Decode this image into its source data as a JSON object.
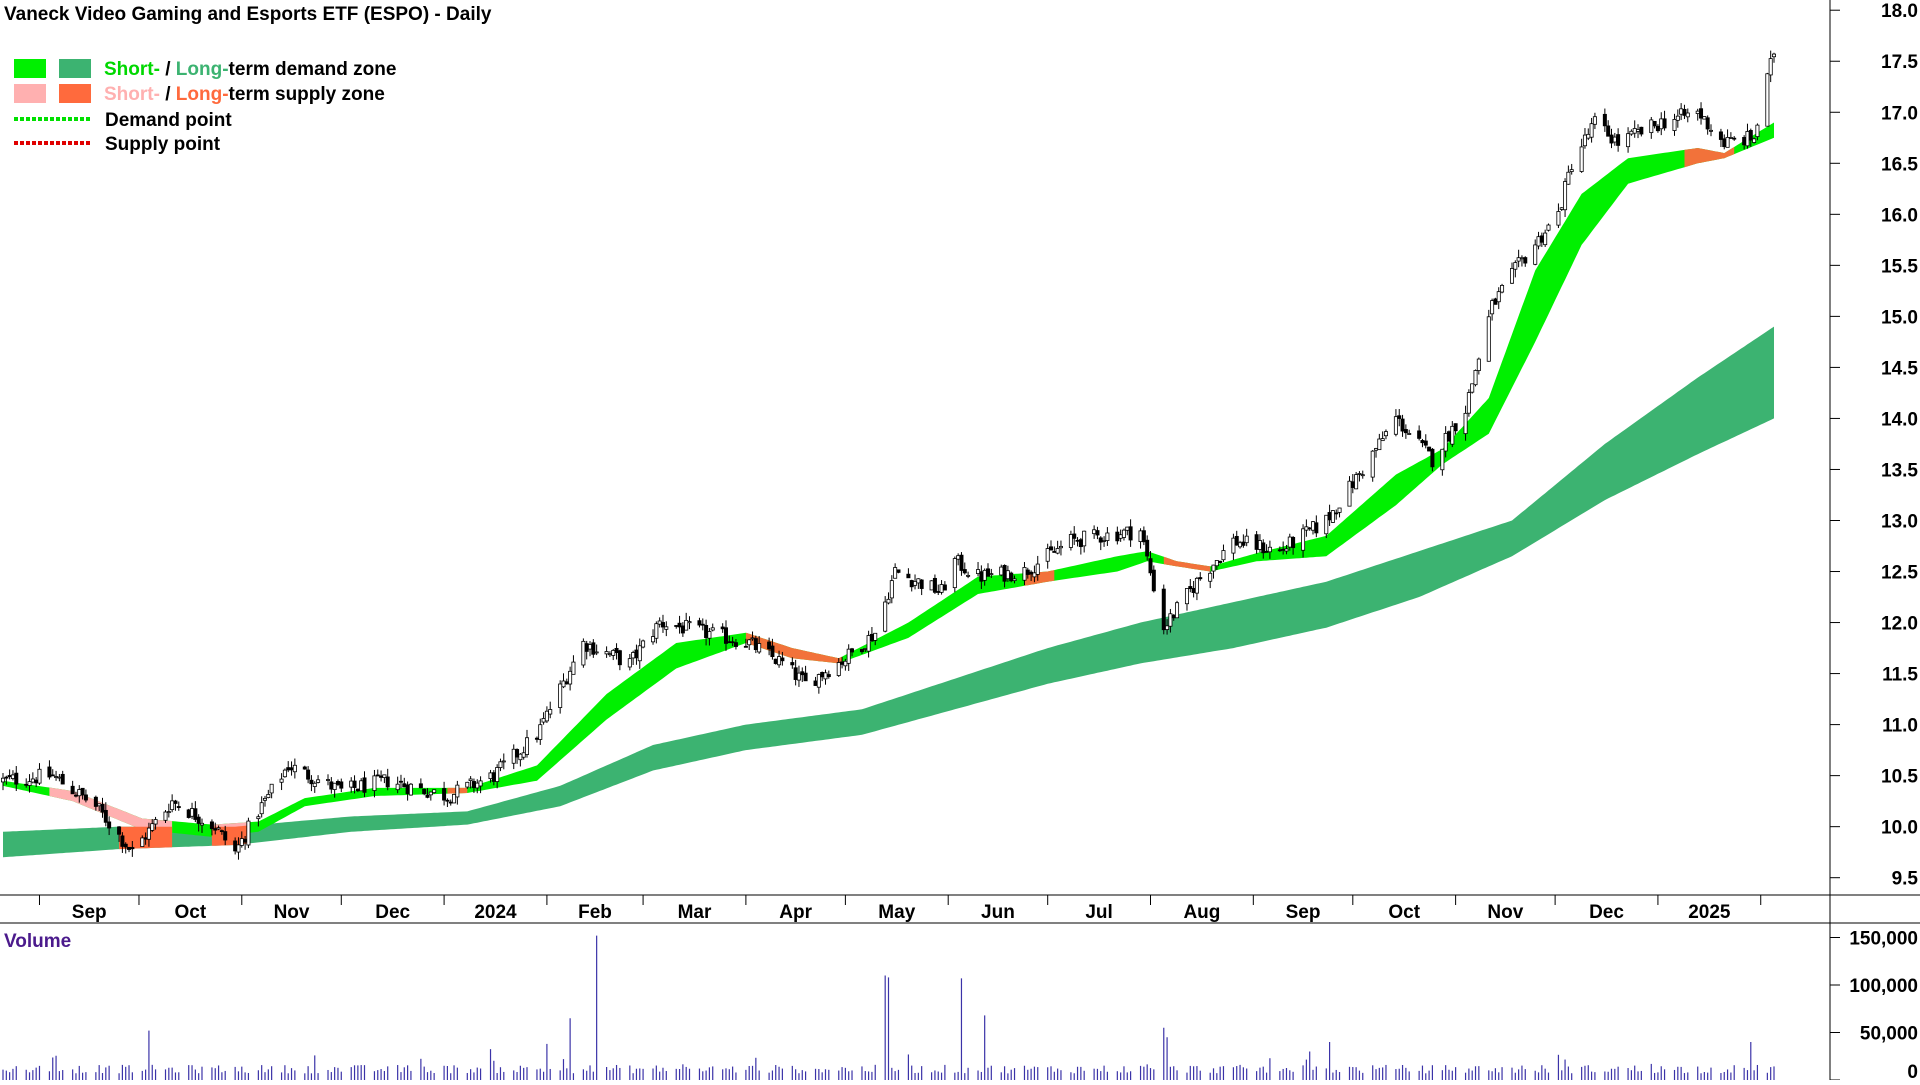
{
  "chart_data": {
    "type": "candlestick",
    "title": "Vaneck Video Gaming and Esports ETF (ESPO) - Daily",
    "x_tick_labels": [
      "Sep",
      "Oct",
      "Nov",
      "Dec",
      "2024",
      "Feb",
      "Mar",
      "Apr",
      "May",
      "Jun",
      "Jul",
      "Aug",
      "Sep",
      "Oct",
      "Nov",
      "Dec",
      "2025"
    ],
    "price_axis": {
      "ylim": [
        9.35,
        18.1
      ],
      "ticks": [
        "9.5",
        "10.0",
        "10.5",
        "11.0",
        "11.5",
        "12.0",
        "12.5",
        "13.0",
        "13.5",
        "14.0",
        "14.5",
        "15.0",
        "15.5",
        "16.0",
        "16.5",
        "17.0",
        "17.5",
        "18.0"
      ]
    },
    "volume_axis": {
      "label": "Volume",
      "ylim": [
        0,
        160000
      ],
      "ticks": [
        "0",
        "50,000",
        "100,000",
        "150,000"
      ]
    },
    "legend": {
      "placement": "top-left",
      "rows": [
        {
          "short_text": "Short-",
          "sep": " / ",
          "long_text": "Long-",
          "rest": "term demand zone"
        },
        {
          "short_text": "Short-",
          "sep": " / ",
          "long_text": "Long-",
          "rest": "term supply zone"
        },
        {
          "label": "Demand point"
        },
        {
          "label": "Supply point"
        }
      ]
    },
    "colors": {
      "short_demand": "#00f000",
      "long_demand": "#3cb371",
      "short_supply": "#ffb0b0",
      "long_supply": "#ff6a3d",
      "demand_point": "#00e000",
      "supply_point": "#e00000",
      "candle": "#000000",
      "volume_bar": "#3b33a8",
      "legend_text": "#000000",
      "volume_label": "#4b1a8c"
    },
    "price_path": {
      "dates": [
        "2023-08-21",
        "2023-09-05",
        "2023-09-18",
        "2023-09-29",
        "2023-10-11",
        "2023-10-24",
        "2023-10-30",
        "2023-11-06",
        "2023-11-15",
        "2023-12-01",
        "2023-12-15",
        "2024-01-02",
        "2024-01-16",
        "2024-01-29",
        "2024-02-12",
        "2024-02-26",
        "2024-03-06",
        "2024-03-20",
        "2024-04-02",
        "2024-04-12",
        "2024-04-19",
        "2024-05-01",
        "2024-05-10",
        "2024-05-16",
        "2024-05-30",
        "2024-06-03",
        "2024-06-10",
        "2024-06-24",
        "2024-07-08",
        "2024-07-17",
        "2024-07-29",
        "2024-08-05",
        "2024-08-15",
        "2024-08-26",
        "2024-09-09",
        "2024-09-23",
        "2024-10-04",
        "2024-10-14",
        "2024-10-25",
        "2024-11-04",
        "2024-11-12",
        "2024-11-20",
        "2024-12-02",
        "2024-12-06",
        "2024-12-13",
        "2024-12-20",
        "2025-01-02",
        "2025-01-13",
        "2025-01-21",
        "2025-01-30",
        "2025-02-05"
      ],
      "close": [
        10.45,
        10.5,
        10.2,
        9.75,
        10.25,
        10.0,
        9.75,
        10.15,
        10.6,
        10.35,
        10.45,
        10.3,
        10.5,
        10.9,
        11.8,
        11.6,
        12.0,
        11.9,
        11.8,
        11.6,
        11.4,
        11.65,
        11.9,
        12.5,
        12.3,
        12.6,
        12.45,
        12.5,
        12.8,
        12.85,
        12.9,
        11.95,
        12.4,
        12.8,
        12.7,
        13.0,
        13.5,
        14.0,
        13.6,
        14.1,
        15.1,
        15.5,
        16.0,
        16.5,
        16.9,
        16.7,
        16.9,
        17.0,
        16.7,
        16.75,
        17.6
      ]
    },
    "short_zone": {
      "dates": [
        "2023-08-21",
        "2023-09-11",
        "2023-10-02",
        "2023-10-23",
        "2023-11-06",
        "2023-11-20",
        "2023-12-11",
        "2024-01-08",
        "2024-01-29",
        "2024-02-19",
        "2024-03-11",
        "2024-04-01",
        "2024-04-15",
        "2024-04-29",
        "2024-05-20",
        "2024-06-10",
        "2024-07-01",
        "2024-07-22",
        "2024-07-31",
        "2024-08-09",
        "2024-08-19",
        "2024-09-02",
        "2024-09-23",
        "2024-10-14",
        "2024-10-28",
        "2024-11-11",
        "2024-11-25",
        "2024-12-09",
        "2024-12-23",
        "2025-01-13",
        "2025-01-21",
        "2025-02-05"
      ],
      "upper": [
        10.45,
        10.35,
        10.08,
        10.02,
        10.05,
        10.28,
        10.38,
        10.38,
        10.6,
        11.3,
        11.8,
        11.9,
        11.75,
        11.65,
        12.0,
        12.45,
        12.5,
        12.65,
        12.7,
        12.6,
        12.55,
        12.68,
        12.85,
        13.45,
        13.7,
        14.2,
        15.45,
        16.2,
        16.55,
        16.65,
        16.6,
        16.9
      ],
      "lower": [
        10.4,
        10.25,
        9.97,
        9.9,
        9.95,
        10.2,
        10.3,
        10.33,
        10.45,
        11.05,
        11.55,
        11.8,
        11.65,
        11.6,
        11.85,
        12.28,
        12.4,
        12.5,
        12.6,
        12.55,
        12.5,
        12.6,
        12.65,
        13.15,
        13.55,
        13.85,
        14.75,
        15.7,
        16.3,
        16.5,
        16.55,
        16.75
      ]
    },
    "long_zone": {
      "dates": [
        "2023-08-21",
        "2023-09-25",
        "2023-10-30",
        "2023-12-04",
        "2024-01-08",
        "2024-02-05",
        "2024-03-04",
        "2024-04-01",
        "2024-05-06",
        "2024-06-03",
        "2024-07-01",
        "2024-07-29",
        "2024-08-26",
        "2024-09-23",
        "2024-10-21",
        "2024-11-18",
        "2024-12-16",
        "2025-01-13",
        "2025-02-05"
      ],
      "upper": [
        9.95,
        10.0,
        10.0,
        10.1,
        10.15,
        10.4,
        10.8,
        11.0,
        11.15,
        11.45,
        11.75,
        12.0,
        12.2,
        12.4,
        12.7,
        13.0,
        13.75,
        14.4,
        14.9
      ],
      "lower": [
        9.7,
        9.78,
        9.82,
        9.95,
        10.02,
        10.2,
        10.55,
        10.75,
        10.9,
        11.15,
        11.4,
        11.6,
        11.75,
        11.95,
        12.25,
        12.65,
        13.2,
        13.65,
        14.0
      ]
    },
    "short_supply_segments": [
      [
        "2023-09-04",
        "2023-10-11"
      ],
      [
        "2023-10-23",
        "2023-11-03"
      ]
    ],
    "long_supply_segments": [
      [
        "2023-09-25",
        "2023-10-11"
      ],
      [
        "2023-10-23",
        "2023-11-03"
      ],
      [
        "2024-01-02",
        "2024-01-08"
      ],
      [
        "2024-04-01",
        "2024-04-30"
      ],
      [
        "2024-06-24",
        "2024-07-03"
      ],
      [
        "2024-08-05",
        "2024-08-19"
      ],
      [
        "2025-01-09",
        "2025-01-24"
      ]
    ],
    "volume_spikes": [
      [
        "2023-10-04",
        52000
      ],
      [
        "2024-02-01",
        38000
      ],
      [
        "2024-02-08",
        65000
      ],
      [
        "2024-02-16",
        152000
      ],
      [
        "2024-05-13",
        110000
      ],
      [
        "2024-05-14",
        108000
      ],
      [
        "2024-06-05",
        107000
      ],
      [
        "2024-06-12",
        68000
      ],
      [
        "2024-08-05",
        55000
      ],
      [
        "2024-08-06",
        45000
      ],
      [
        "2024-09-18",
        30000
      ],
      [
        "2024-09-24",
        40000
      ],
      [
        "2025-01-29",
        40000
      ]
    ]
  }
}
